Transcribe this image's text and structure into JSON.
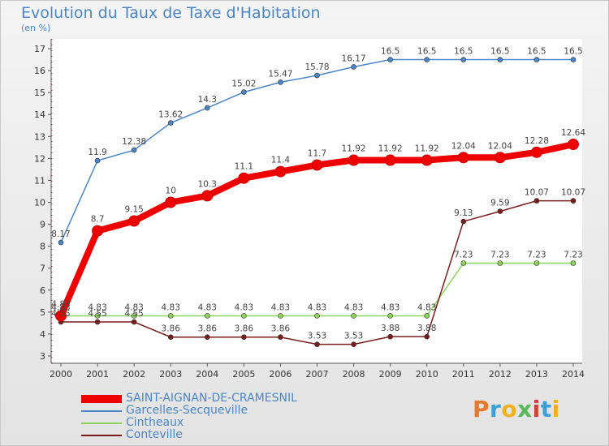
{
  "header": {
    "title": "Evolution du Taux de Taxe d'Habitation",
    "unit": "(en %)"
  },
  "logo": {
    "text": "Proxiti",
    "letters": [
      {
        "ch": "P",
        "color": "#e8792a"
      },
      {
        "ch": "r",
        "color": "#3aa0d8"
      },
      {
        "ch": "o",
        "color": "#f0b020"
      },
      {
        "ch": "x",
        "color": "#5cb85c"
      },
      {
        "ch": "i",
        "color": "#d93a3a"
      },
      {
        "ch": "t",
        "color": "#3aa0d8"
      },
      {
        "ch": "i",
        "color": "#f0b020"
      }
    ]
  },
  "chart_data": {
    "type": "line",
    "title": "Evolution du Taux de Taxe d'Habitation",
    "ylabel": "(en %)",
    "xlabel": "",
    "x": [
      "2000",
      "2001",
      "2002",
      "2003",
      "2004",
      "2005",
      "2006",
      "2007",
      "2008",
      "2009",
      "2010",
      "2011",
      "2012",
      "2013",
      "2014"
    ],
    "yticks": [
      3,
      4,
      5,
      6,
      7,
      8,
      9,
      10,
      11,
      12,
      13,
      14,
      15,
      16,
      17
    ],
    "ylim": [
      3,
      17
    ],
    "grid": false,
    "legend_position": "bottom",
    "series": [
      {
        "name": "SAINT-AIGNAN-DE-CRAMESNIL",
        "color": "#ee0000",
        "bold": true,
        "values": [
          4.83,
          8.7,
          9.15,
          10,
          10.3,
          11.1,
          11.4,
          11.7,
          11.92,
          11.92,
          11.92,
          12.04,
          12.04,
          12.28,
          12.64
        ],
        "labels": [
          "4.83",
          "8.7",
          "9.15",
          "10",
          "10.3",
          "11.1",
          "11.4",
          "11.7",
          "11.92",
          "11.92",
          "11.92",
          "12.04",
          "12.04",
          "12.28",
          "12.64"
        ]
      },
      {
        "name": "Garcelles-Secqueville",
        "color": "#4a86c8",
        "bold": false,
        "values": [
          8.17,
          11.9,
          12.38,
          13.62,
          14.3,
          15.02,
          15.47,
          15.78,
          16.17,
          16.5,
          16.5,
          16.5,
          16.5,
          16.5,
          16.5
        ],
        "labels": [
          "8.17",
          "11.9",
          "12.38",
          "13.62",
          "14.3",
          "15.02",
          "15.47",
          "15.78",
          "16.17",
          "16.5",
          "16.5",
          "16.5",
          "16.5",
          "16.5",
          "16.5"
        ]
      },
      {
        "name": "Cintheaux",
        "color": "#8ed45a",
        "bold": false,
        "values": [
          4.83,
          4.83,
          4.83,
          4.83,
          4.83,
          4.83,
          4.83,
          4.83,
          4.83,
          4.83,
          4.83,
          7.23,
          7.23,
          7.23,
          7.23
        ],
        "labels": [
          "4.83",
          "4.83",
          "4.83",
          "4.83",
          "4.83",
          "4.83",
          "4.83",
          "4.83",
          "4.83",
          "4.83",
          "4.83",
          "7.23",
          "7.23",
          "7.23",
          "7.23"
        ]
      },
      {
        "name": "Conteville",
        "color": "#7b1c1c",
        "bold": false,
        "values": [
          4.55,
          4.55,
          4.55,
          3.86,
          3.86,
          3.86,
          3.86,
          3.53,
          3.53,
          3.88,
          3.88,
          9.13,
          9.59,
          10.07,
          10.07
        ],
        "labels": [
          "4.55",
          "4.55",
          "4.55",
          "3.86",
          "3.86",
          "3.86",
          "3.86",
          "3.53",
          "3.53",
          "3.88",
          "3.88",
          "9.13",
          "9.59",
          "10.07",
          "10.07"
        ]
      }
    ]
  }
}
